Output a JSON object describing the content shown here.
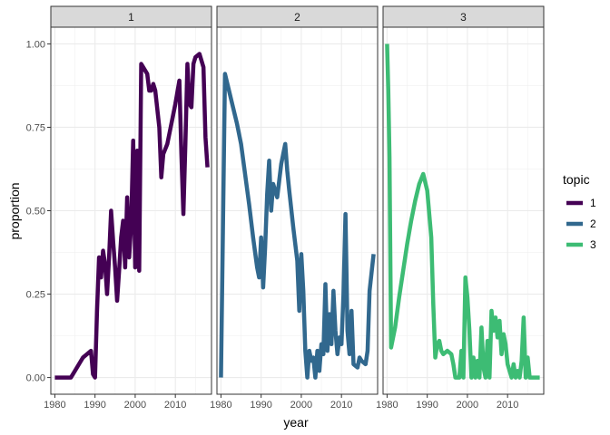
{
  "chart_data": {
    "type": "line",
    "facet_by": "topic",
    "facets": [
      "1",
      "2",
      "3"
    ],
    "xlabel": "year",
    "ylabel": "proportion",
    "xlim": [
      1979,
      2019
    ],
    "ylim": [
      -0.05,
      1.05
    ],
    "x_ticks": [
      1980,
      1990,
      2000,
      2010
    ],
    "y_ticks": [
      0.0,
      0.25,
      0.5,
      0.75,
      1.0
    ],
    "y_tick_labels": [
      "0.00",
      "0.25",
      "0.50",
      "0.75",
      "1.00"
    ],
    "grid": true,
    "legend": {
      "title": "topic",
      "placement": "right",
      "entries": [
        "1",
        "2",
        "3"
      ]
    },
    "series": [
      {
        "name": "1",
        "color": "#440154",
        "points": [
          [
            1980,
            0.0
          ],
          [
            1981,
            0.0
          ],
          [
            1982,
            0.0
          ],
          [
            1983,
            0.0
          ],
          [
            1984,
            0.0
          ],
          [
            1985,
            0.02
          ],
          [
            1986,
            0.04
          ],
          [
            1987,
            0.06
          ],
          [
            1988,
            0.07
          ],
          [
            1989,
            0.08
          ],
          [
            1989.5,
            0.01
          ],
          [
            1990,
            0.0
          ],
          [
            1990.5,
            0.2
          ],
          [
            1991,
            0.36
          ],
          [
            1991.5,
            0.3
          ],
          [
            1992,
            0.38
          ],
          [
            1992.5,
            0.34
          ],
          [
            1993,
            0.25
          ],
          [
            1993.5,
            0.36
          ],
          [
            1994,
            0.5
          ],
          [
            1994.5,
            0.41
          ],
          [
            1995,
            0.33
          ],
          [
            1995.5,
            0.23
          ],
          [
            1996,
            0.32
          ],
          [
            1996.5,
            0.42
          ],
          [
            1997,
            0.47
          ],
          [
            1997.5,
            0.33
          ],
          [
            1998,
            0.54
          ],
          [
            1998.5,
            0.36
          ],
          [
            1999,
            0.46
          ],
          [
            1999.5,
            0.71
          ],
          [
            2000,
            0.33
          ],
          [
            2000.5,
            0.68
          ],
          [
            2001,
            0.32
          ],
          [
            2001.5,
            0.94
          ],
          [
            2002,
            0.93
          ],
          [
            2003,
            0.91
          ],
          [
            2003.5,
            0.86
          ],
          [
            2004,
            0.86
          ],
          [
            2004.5,
            0.88
          ],
          [
            2005,
            0.86
          ],
          [
            2006,
            0.75
          ],
          [
            2006.5,
            0.6
          ],
          [
            2007,
            0.67
          ],
          [
            2008,
            0.7
          ],
          [
            2009,
            0.76
          ],
          [
            2010,
            0.82
          ],
          [
            2011,
            0.89
          ],
          [
            2011.5,
            0.67
          ],
          [
            2012,
            0.49
          ],
          [
            2012.5,
            0.7
          ],
          [
            2013,
            0.94
          ],
          [
            2013.5,
            0.82
          ],
          [
            2014,
            0.81
          ],
          [
            2014.5,
            0.94
          ],
          [
            2015,
            0.96
          ],
          [
            2016,
            0.97
          ],
          [
            2017,
            0.93
          ],
          [
            2017.5,
            0.72
          ],
          [
            2018,
            0.63
          ]
        ]
      },
      {
        "name": "2",
        "color": "#31688E",
        "points": [
          [
            1980,
            0.0
          ],
          [
            1981,
            0.91
          ],
          [
            1982,
            0.86
          ],
          [
            1983,
            0.81
          ],
          [
            1984,
            0.76
          ],
          [
            1985,
            0.7
          ],
          [
            1986,
            0.61
          ],
          [
            1987,
            0.52
          ],
          [
            1988,
            0.42
          ],
          [
            1989,
            0.33
          ],
          [
            1989.5,
            0.3
          ],
          [
            1990,
            0.42
          ],
          [
            1990.5,
            0.27
          ],
          [
            1991,
            0.39
          ],
          [
            1991.5,
            0.55
          ],
          [
            1992,
            0.65
          ],
          [
            1992.5,
            0.5
          ],
          [
            1993,
            0.58
          ],
          [
            1994,
            0.54
          ],
          [
            1995,
            0.64
          ],
          [
            1996,
            0.7
          ],
          [
            1996.5,
            0.62
          ],
          [
            1997,
            0.56
          ],
          [
            1998,
            0.45
          ],
          [
            1999,
            0.35
          ],
          [
            1999.5,
            0.2
          ],
          [
            2000,
            0.37
          ],
          [
            2000.5,
            0.26
          ],
          [
            2001,
            0.08
          ],
          [
            2001.5,
            0.0
          ],
          [
            2002,
            0.08
          ],
          [
            2002.5,
            0.05
          ],
          [
            2003,
            0.06
          ],
          [
            2003.5,
            0.0
          ],
          [
            2004,
            0.08
          ],
          [
            2004.5,
            0.02
          ],
          [
            2005,
            0.1
          ],
          [
            2005.5,
            0.07
          ],
          [
            2006,
            0.28
          ],
          [
            2006.5,
            0.08
          ],
          [
            2007,
            0.19
          ],
          [
            2007.5,
            0.1
          ],
          [
            2008,
            0.26
          ],
          [
            2008.5,
            0.14
          ],
          [
            2009,
            0.07
          ],
          [
            2009.5,
            0.12
          ],
          [
            2010,
            0.1
          ],
          [
            2010.5,
            0.25
          ],
          [
            2011,
            0.49
          ],
          [
            2011.5,
            0.14
          ],
          [
            2012,
            0.07
          ],
          [
            2012.5,
            0.2
          ],
          [
            2013,
            0.04
          ],
          [
            2014,
            0.03
          ],
          [
            2014.5,
            0.06
          ],
          [
            2015,
            0.05
          ],
          [
            2016,
            0.04
          ],
          [
            2016.5,
            0.08
          ],
          [
            2017,
            0.26
          ],
          [
            2018,
            0.37
          ]
        ]
      },
      {
        "name": "3",
        "color": "#3DBC74",
        "points": [
          [
            1980,
            1.0
          ],
          [
            1980.3,
            0.86
          ],
          [
            1980.6,
            0.66
          ],
          [
            1981,
            0.09
          ],
          [
            1982,
            0.15
          ],
          [
            1983,
            0.24
          ],
          [
            1984,
            0.32
          ],
          [
            1985,
            0.4
          ],
          [
            1986,
            0.47
          ],
          [
            1987,
            0.53
          ],
          [
            1988,
            0.58
          ],
          [
            1989,
            0.61
          ],
          [
            1990,
            0.56
          ],
          [
            1991,
            0.42
          ],
          [
            1991.5,
            0.22
          ],
          [
            1992,
            0.06
          ],
          [
            1992.5,
            0.1
          ],
          [
            1993,
            0.11
          ],
          [
            1993.5,
            0.08
          ],
          [
            1994,
            0.07
          ],
          [
            1995,
            0.08
          ],
          [
            1996,
            0.07
          ],
          [
            1996.5,
            0.04
          ],
          [
            1997,
            0.0
          ],
          [
            1998,
            0.0
          ],
          [
            1998.5,
            0.08
          ],
          [
            1999,
            0.0
          ],
          [
            1999.5,
            0.3
          ],
          [
            2000,
            0.24
          ],
          [
            2000.5,
            0.14
          ],
          [
            2001,
            0.0
          ],
          [
            2001.5,
            0.06
          ],
          [
            2002,
            0.0
          ],
          [
            2002.5,
            0.05
          ],
          [
            2003,
            0.0
          ],
          [
            2003.5,
            0.15
          ],
          [
            2004,
            0.03
          ],
          [
            2004.5,
            0.0
          ],
          [
            2005,
            0.11
          ],
          [
            2005.5,
            0.0
          ],
          [
            2006,
            0.2
          ],
          [
            2006.5,
            0.14
          ],
          [
            2007,
            0.18
          ],
          [
            2007.5,
            0.12
          ],
          [
            2008,
            0.17
          ],
          [
            2008.5,
            0.07
          ],
          [
            2009,
            0.13
          ],
          [
            2009.5,
            0.1
          ],
          [
            2010,
            0.04
          ],
          [
            2010.5,
            0.02
          ],
          [
            2011,
            0.0
          ],
          [
            2011.5,
            0.04
          ],
          [
            2012,
            0.0
          ],
          [
            2012.5,
            0.02
          ],
          [
            2013,
            0.0
          ],
          [
            2013.5,
            0.05
          ],
          [
            2014,
            0.18
          ],
          [
            2014.5,
            0.0
          ],
          [
            2015,
            0.06
          ],
          [
            2015.5,
            0.0
          ],
          [
            2016,
            0.0
          ],
          [
            2017,
            0.0
          ],
          [
            2018,
            0.0
          ]
        ]
      }
    ]
  }
}
